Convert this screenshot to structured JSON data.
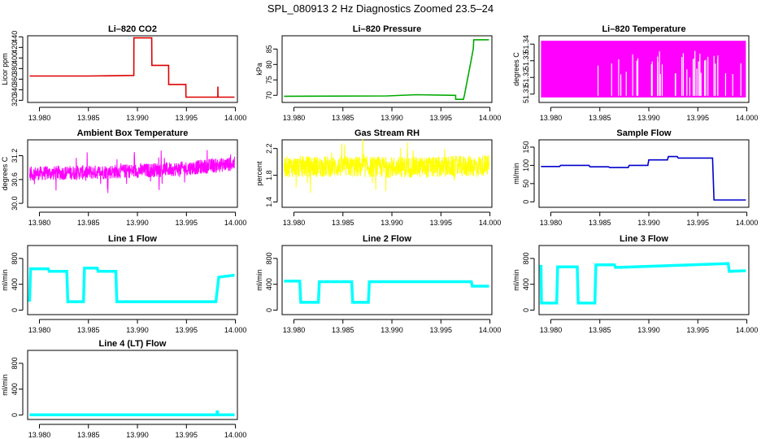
{
  "figure_title": "SPL_080913  2 Hz Diagnostics Zoomed 23.5–24",
  "chart_data": [
    {
      "type": "line",
      "title": "Li–820 CO2",
      "ylabel": "Licor ppm",
      "color": "#dd0000",
      "xlim": [
        13.9788,
        14.0002
      ],
      "ylim": [
        316,
        442
      ],
      "yticks": [
        "320",
        "340",
        "360",
        "380",
        "400",
        "420",
        "440"
      ],
      "x": [
        13.979,
        13.985,
        13.98963,
        13.98964,
        13.99146,
        13.99147,
        13.99318,
        13.99319,
        13.99494,
        13.99495,
        13.9982,
        13.99821,
        13.99822,
        13.9999
      ],
      "y": [
        366,
        366,
        367,
        438,
        438,
        386,
        386,
        350,
        350,
        326,
        326,
        346,
        326,
        326
      ]
    },
    {
      "type": "line",
      "title": "Li–820 Pressure",
      "ylabel": "kPa",
      "color": "#00aa00",
      "xlim": [
        13.9788,
        14.0002
      ],
      "ylim": [
        67.7,
        89.3
      ],
      "yticks": [
        "70",
        "75",
        "80",
        "85"
      ],
      "x": [
        13.979,
        13.9895,
        13.9925,
        13.9965,
        13.99651,
        13.9973,
        13.9974,
        13.998,
        13.9983,
        13.99835,
        13.9999
      ],
      "y": [
        69.7,
        69.8,
        70.2,
        70.0,
        68.7,
        68.7,
        70,
        80,
        85,
        88,
        88
      ]
    },
    {
      "type": "area",
      "title": "Li–820 Temperature",
      "ylabel": "degrees C",
      "color": "#ff00ff",
      "xlim": [
        13.9788,
        14.0002
      ],
      "ylim": [
        51.305,
        51.345
      ],
      "yticks": [
        "51.31",
        "51.32",
        "51.33",
        "51.34"
      ],
      "x": [
        13.979,
        13.9999
      ],
      "y_range": [
        51.308,
        51.342
      ]
    },
    {
      "type": "line",
      "title": "Ambient Box Temperature",
      "ylabel": "degrees C",
      "color": "#ff00ff",
      "xlim": [
        13.9788,
        14.0002
      ],
      "ylim": [
        29.9,
        31.6
      ],
      "yticks": [
        "30.0",
        "30.6",
        "31.2"
      ],
      "x": [
        13.979,
        13.985,
        13.99,
        13.995,
        13.9999
      ],
      "y": [
        30.75,
        30.78,
        30.82,
        30.88,
        31.0
      ]
    },
    {
      "type": "line",
      "title": "Gas Stream RH",
      "ylabel": "percent",
      "color": "#ffff00",
      "xlim": [
        13.9788,
        14.0002
      ],
      "ylim": [
        1.32,
        2.33
      ],
      "yticks": [
        "1.4",
        "1.8",
        "2.2"
      ],
      "x": [
        13.979,
        13.985,
        13.99,
        13.995,
        13.9999
      ],
      "y": [
        1.93,
        1.93,
        1.92,
        1.92,
        1.95
      ]
    },
    {
      "type": "line",
      "title": "Sample Flow",
      "ylabel": "ml/min",
      "color": "#0000cc",
      "xlim": [
        13.9788,
        14.0002
      ],
      "ylim": [
        -15,
        170
      ],
      "yticks": [
        "0",
        "50",
        "100",
        "150"
      ],
      "x": [
        13.979,
        13.9809,
        13.981,
        13.9839,
        13.984,
        13.9859,
        13.986,
        13.9879,
        13.988,
        13.9899,
        13.99,
        13.9919,
        13.992,
        13.9929,
        13.993,
        13.9965,
        13.99665,
        13.9999
      ],
      "y": [
        97,
        97,
        100,
        100,
        96,
        96,
        94,
        94,
        100,
        100,
        115,
        115,
        124,
        124,
        120,
        120,
        5,
        5
      ]
    },
    {
      "type": "line",
      "title": "Line 1 Flow",
      "ylabel": "ml/min",
      "color": "#00ffff",
      "xlim": [
        13.9788,
        14.0002
      ],
      "ylim": [
        -70,
        1000
      ],
      "yticks": [
        "0",
        "400",
        "800"
      ],
      "x": [
        13.979,
        13.9791,
        13.9809,
        13.981,
        13.9828,
        13.9829,
        13.9845,
        13.9846,
        13.9859,
        13.986,
        13.9878,
        13.9879,
        13.998,
        13.9983,
        13.9999
      ],
      "y": [
        130,
        640,
        640,
        600,
        600,
        130,
        130,
        650,
        650,
        600,
        600,
        130,
        130,
        510,
        540
      ]
    },
    {
      "type": "line",
      "title": "Line 2 Flow",
      "ylabel": "ml/min",
      "color": "#00ffff",
      "xlim": [
        13.9788,
        14.0002
      ],
      "ylim": [
        -70,
        1000
      ],
      "yticks": [
        "0",
        "400",
        "800"
      ],
      "x": [
        13.979,
        13.9806,
        13.9807,
        13.9825,
        13.9826,
        13.9859,
        13.986,
        13.9876,
        13.9877,
        13.9981,
        13.9982,
        13.9999
      ],
      "y": [
        450,
        450,
        120,
        120,
        440,
        440,
        120,
        120,
        440,
        440,
        370,
        370
      ]
    },
    {
      "type": "line",
      "title": "Line 3 Flow",
      "ylabel": "ml/min",
      "color": "#00ffff",
      "xlim": [
        13.9788,
        14.0002
      ],
      "ylim": [
        -70,
        1000
      ],
      "yticks": [
        "0",
        "400",
        "800"
      ],
      "x": [
        13.979,
        13.97905,
        13.9806,
        13.9807,
        13.9827,
        13.9828,
        13.9845,
        13.9846,
        13.9865,
        13.9866,
        13.9981,
        13.9982,
        13.9999
      ],
      "y": [
        700,
        110,
        110,
        670,
        670,
        110,
        110,
        700,
        700,
        660,
        720,
        600,
        610
      ]
    },
    {
      "type": "line",
      "title": "Line 4 (LT) Flow",
      "ylabel": "ml/min",
      "color": "#00ffff",
      "xlim": [
        13.9788,
        14.0002
      ],
      "ylim": [
        -70,
        1000
      ],
      "yticks": [
        "0",
        "400",
        "800"
      ],
      "x": [
        13.979,
        13.9981,
        13.99815,
        13.9982,
        13.9999
      ],
      "y": [
        3,
        3,
        70,
        3,
        3
      ]
    }
  ],
  "x_tick_labels": [
    "13.980",
    "13.985",
    "13.990",
    "13.995",
    "14.000"
  ],
  "x_tick_values": [
    13.98,
    13.985,
    13.99,
    13.995,
    14.0
  ]
}
